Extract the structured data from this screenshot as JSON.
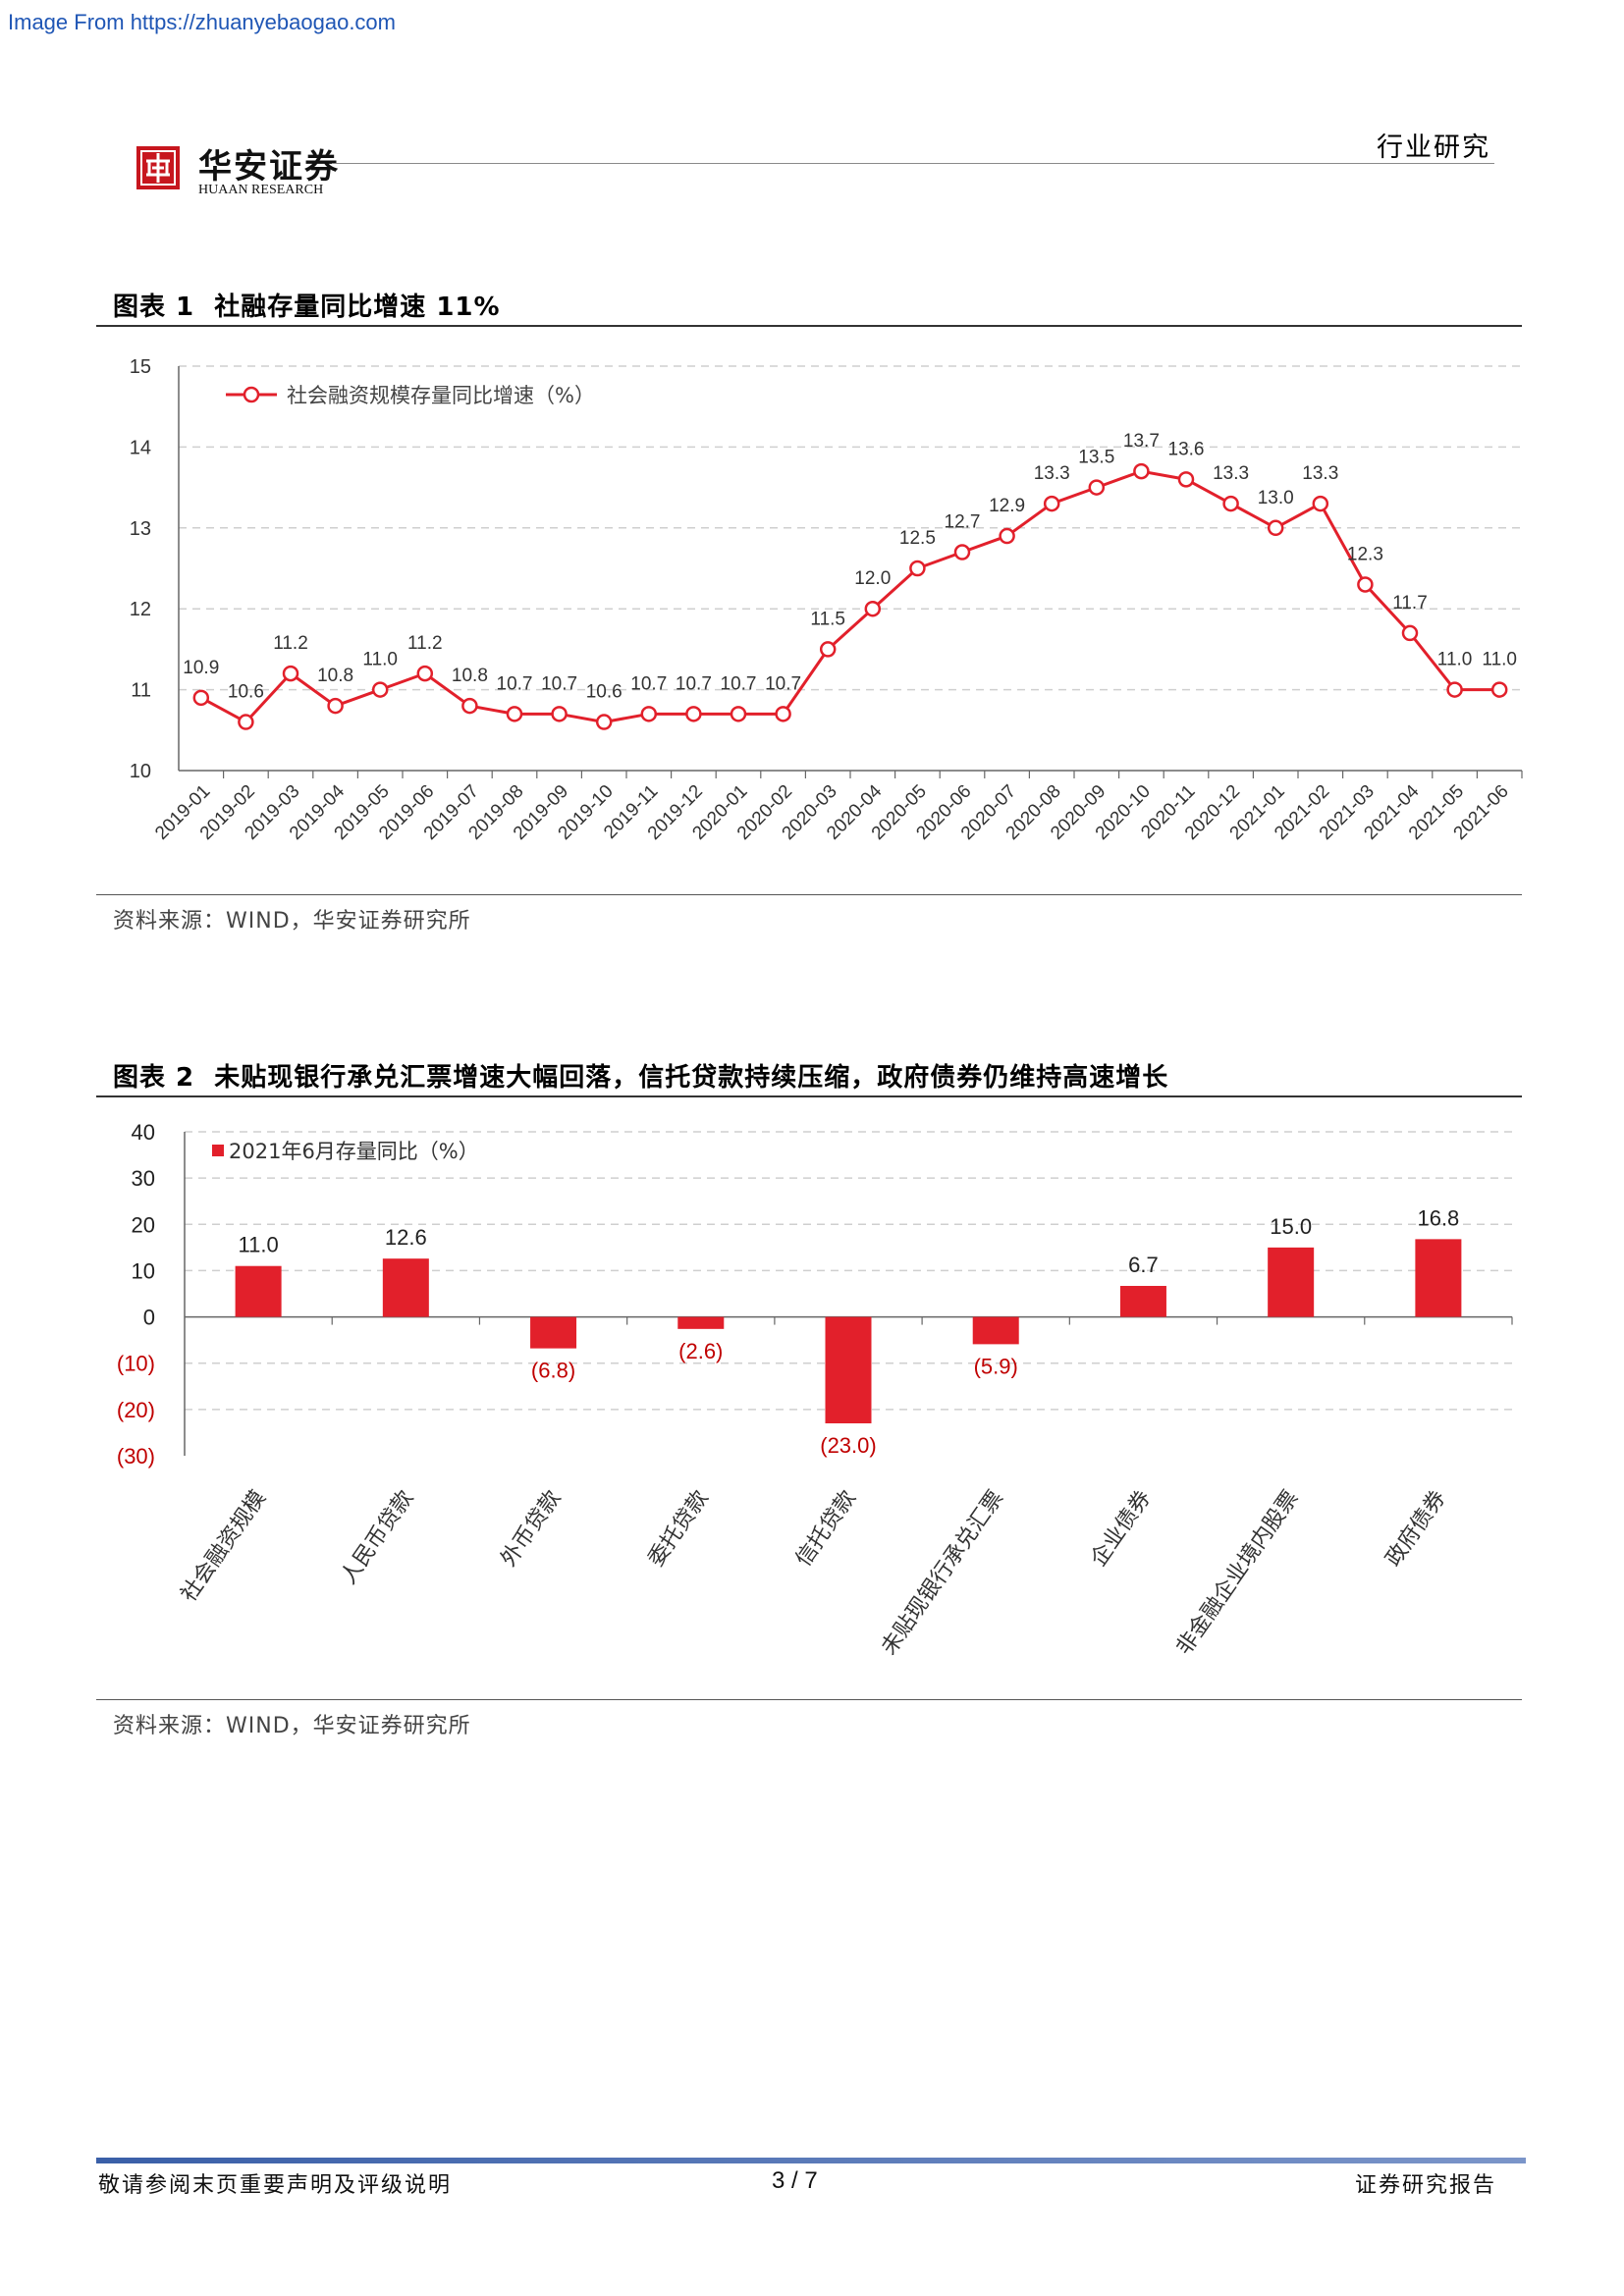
{
  "watermark": "Image From https://zhuanyebaogao.com",
  "header": {
    "brand_cn": "华安证券",
    "brand_en": "HUAAN RESEARCH",
    "section": "行业研究"
  },
  "figure1": {
    "label": "图表 1",
    "title": "社融存量同比增速 11%",
    "source": "资料来源：WIND，华安证券研究所"
  },
  "figure2": {
    "label": "图表 2",
    "title": "未贴现银行承兑汇票增速大幅回落，信托贷款持续压缩，政府债券仍维持高速增长",
    "source": "资料来源：WIND，华安证券研究所"
  },
  "footer": {
    "left": "敬请参阅末页重要声明及评级说明",
    "page": "3 / 7",
    "right": "证券研究报告"
  },
  "colors": {
    "series": "#e2202b",
    "grid": "#cfcfcf",
    "negative_label": "#c00000"
  },
  "chart_data": [
    {
      "type": "line",
      "series": [
        {
          "name": "社会融资规模存量同比增速（%）",
          "values": [
            10.9,
            10.6,
            11.2,
            10.8,
            11.0,
            11.2,
            10.8,
            10.7,
            10.7,
            10.6,
            10.7,
            10.7,
            10.7,
            10.7,
            11.5,
            12.0,
            12.5,
            12.7,
            12.9,
            13.3,
            13.5,
            13.7,
            13.6,
            13.3,
            13.0,
            13.3,
            12.3,
            11.7,
            11.0,
            11.0
          ]
        }
      ],
      "x": [
        "2019-01",
        "2019-02",
        "2019-03",
        "2019-04",
        "2019-05",
        "2019-06",
        "2019-07",
        "2019-08",
        "2019-09",
        "2019-10",
        "2019-11",
        "2019-12",
        "2020-01",
        "2020-02",
        "2020-03",
        "2020-04",
        "2020-05",
        "2020-06",
        "2020-07",
        "2020-08",
        "2020-09",
        "2020-10",
        "2020-11",
        "2020-12",
        "2021-01",
        "2021-02",
        "2021-03",
        "2021-04",
        "2021-05",
        "2021-06"
      ],
      "ylim": [
        10,
        15
      ],
      "yticks": [
        10,
        11,
        12,
        13,
        14,
        15
      ],
      "grid": true,
      "legend_position": "top-left",
      "data_labels": true
    },
    {
      "type": "bar",
      "categories": [
        "社会融资规模",
        "人民币贷款",
        "外币贷款",
        "委托贷款",
        "信托贷款",
        "未贴现银行承兑汇票",
        "企业债券",
        "非金融企业境内股票",
        "政府债券"
      ],
      "series": [
        {
          "name": "2021年6月存量同比（%）",
          "values": [
            11.0,
            12.6,
            -6.8,
            -2.6,
            -23.0,
            -5.9,
            6.7,
            15.0,
            16.8
          ],
          "labels": [
            "11.0",
            "12.6",
            "(6.8)",
            "(2.6)",
            "(23.0)",
            "(5.9)",
            "6.7",
            "15.0",
            "16.8"
          ]
        }
      ],
      "ylim": [
        -30,
        40
      ],
      "yticks": [
        "(30)",
        "(20)",
        "(10)",
        "0",
        "10",
        "20",
        "30",
        "40"
      ],
      "ytick_values": [
        -30,
        -20,
        -10,
        0,
        10,
        20,
        30,
        40
      ],
      "grid": true,
      "legend_position": "top-left",
      "data_labels": true
    }
  ]
}
